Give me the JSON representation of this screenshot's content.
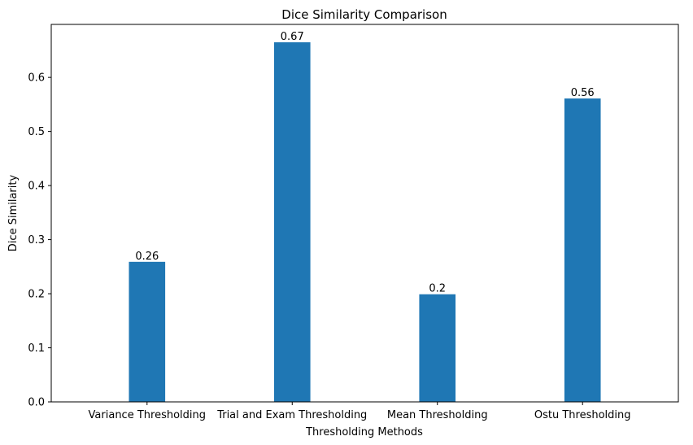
{
  "chart_data": {
    "type": "bar",
    "title": "Dice Similarity Comparison",
    "xlabel": "Thresholding Methods",
    "ylabel": "Dice Similarity",
    "categories": [
      "Variance Thresholding",
      "Trial and Exam Thresholding",
      "Mean Thresholding",
      "Ostu Thresholding"
    ],
    "values": [
      0.259,
      0.665,
      0.199,
      0.561
    ],
    "data_labels": [
      "0.26",
      "0.67",
      "0.2",
      "0.56"
    ],
    "y_ticks": [
      "0.0",
      "0.1",
      "0.2",
      "0.3",
      "0.4",
      "0.5",
      "0.6"
    ],
    "y_tick_values": [
      0.0,
      0.1,
      0.2,
      0.3,
      0.4,
      0.5,
      0.6
    ],
    "ylim": [
      0,
      0.698
    ],
    "grid": false,
    "bar_color": "#1f77b4"
  }
}
